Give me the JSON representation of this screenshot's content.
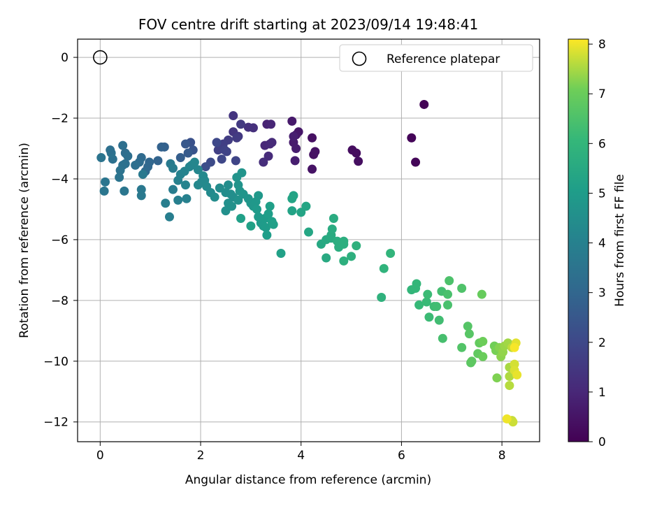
{
  "chart_data": {
    "type": "scatter",
    "title": "FOV centre drift starting at 2023/09/14 19:48:41",
    "xlabel": "Angular distance from reference (arcmin)",
    "ylabel": "Rotation from reference (arcmin)",
    "xlim": [
      -0.45,
      8.75
    ],
    "ylim": [
      -12.65,
      0.6
    ],
    "xticks": [
      0,
      2,
      4,
      6,
      8
    ],
    "yticks": [
      0,
      -2,
      -4,
      -6,
      -8,
      -10,
      -12
    ],
    "grid": true,
    "legend": {
      "position": "top-right",
      "entries": [
        "Reference platepar"
      ]
    },
    "reference_point": {
      "x": 0,
      "y": 0
    },
    "colorbar": {
      "label": "Hours from first FF file",
      "min": 0,
      "max": 8.1,
      "ticks": [
        0,
        1,
        2,
        3,
        4,
        5,
        6,
        7,
        8
      ],
      "colormap": "viridis"
    },
    "points": [
      [
        6.45,
        -1.55,
        0.05
      ],
      [
        6.2,
        -2.65,
        0.1
      ],
      [
        6.28,
        -3.45,
        0.12
      ],
      [
        5.02,
        -3.05,
        0.3
      ],
      [
        5.1,
        -3.15,
        0.32
      ],
      [
        5.14,
        -3.42,
        0.35
      ],
      [
        4.22,
        -2.65,
        0.4
      ],
      [
        4.25,
        -3.2,
        0.42
      ],
      [
        4.28,
        -3.1,
        0.45
      ],
      [
        4.22,
        -3.68,
        0.48
      ],
      [
        3.95,
        -2.45,
        0.55
      ],
      [
        3.9,
        -2.55,
        0.6
      ],
      [
        3.82,
        -2.1,
        0.65
      ],
      [
        3.85,
        -2.8,
        0.7
      ],
      [
        3.9,
        -3.0,
        0.72
      ],
      [
        3.88,
        -3.4,
        0.75
      ],
      [
        3.85,
        -2.6,
        0.78
      ],
      [
        3.32,
        -2.2,
        0.9
      ],
      [
        3.4,
        -2.2,
        0.95
      ],
      [
        3.28,
        -2.9,
        1.0
      ],
      [
        3.38,
        -2.85,
        1.05
      ],
      [
        3.42,
        -2.8,
        1.1
      ],
      [
        3.35,
        -3.25,
        1.15
      ],
      [
        3.25,
        -3.45,
        1.2
      ],
      [
        3.05,
        -2.32,
        1.25
      ],
      [
        2.95,
        -2.3,
        1.3
      ],
      [
        2.65,
        -1.92,
        1.4
      ],
      [
        2.65,
        -2.45,
        1.45
      ],
      [
        2.75,
        -2.6,
        1.5
      ],
      [
        2.8,
        -2.2,
        1.55
      ],
      [
        2.72,
        -2.65,
        1.6
      ],
      [
        2.55,
        -2.72,
        1.65
      ],
      [
        2.45,
        -2.85,
        1.7
      ],
      [
        2.35,
        -3.05,
        1.75
      ],
      [
        2.48,
        -3.05,
        1.8
      ],
      [
        2.52,
        -3.1,
        1.85
      ],
      [
        2.7,
        -3.4,
        1.9
      ],
      [
        2.42,
        -3.35,
        1.95
      ],
      [
        2.32,
        -2.8,
        2.0
      ],
      [
        2.2,
        -3.45,
        2.1
      ],
      [
        2.1,
        -3.6,
        2.2
      ],
      [
        1.8,
        -2.8,
        2.3
      ],
      [
        1.85,
        -3.05,
        2.4
      ],
      [
        1.7,
        -2.85,
        2.5
      ],
      [
        1.75,
        -3.15,
        2.6
      ],
      [
        1.6,
        -3.3,
        2.7
      ],
      [
        1.28,
        -2.95,
        2.8
      ],
      [
        1.22,
        -2.95,
        2.85
      ],
      [
        1.15,
        -3.4,
        2.9
      ],
      [
        0.98,
        -3.45,
        3.0
      ],
      [
        0.95,
        -3.6,
        3.05
      ],
      [
        0.9,
        -3.75,
        3.1
      ],
      [
        0.82,
        -3.3,
        3.15
      ],
      [
        0.78,
        -3.45,
        3.2
      ],
      [
        0.7,
        -3.55,
        3.3
      ],
      [
        0.5,
        -3.5,
        3.35
      ],
      [
        0.45,
        -3.55,
        3.4
      ],
      [
        0.4,
        -3.72,
        3.45
      ],
      [
        0.38,
        -3.95,
        3.5
      ],
      [
        0.25,
        -3.35,
        3.4
      ],
      [
        0.22,
        -3.15,
        3.45
      ],
      [
        0.2,
        -3.05,
        3.35
      ],
      [
        0.45,
        -2.9,
        3.3
      ],
      [
        0.5,
        -3.15,
        3.25
      ],
      [
        0.55,
        -3.25,
        3.3
      ],
      [
        0.02,
        -3.3,
        3.5
      ],
      [
        0.1,
        -4.1,
        3.55
      ],
      [
        0.08,
        -4.4,
        3.6
      ],
      [
        0.48,
        -4.4,
        3.6
      ],
      [
        0.82,
        -4.35,
        3.65
      ],
      [
        0.82,
        -4.55,
        3.7
      ],
      [
        0.85,
        -3.85,
        3.7
      ],
      [
        1.4,
        -3.5,
        3.75
      ],
      [
        1.45,
        -3.65,
        3.8
      ],
      [
        1.45,
        -4.35,
        3.85
      ],
      [
        1.3,
        -4.8,
        3.9
      ],
      [
        1.38,
        -5.25,
        3.9
      ],
      [
        1.55,
        -4.7,
        3.95
      ],
      [
        1.72,
        -4.65,
        4.0
      ],
      [
        1.55,
        -4.05,
        4.0
      ],
      [
        1.6,
        -3.85,
        4.05
      ],
      [
        1.68,
        -3.75,
        4.1
      ],
      [
        1.7,
        -4.2,
        4.1
      ],
      [
        1.78,
        -3.6,
        4.15
      ],
      [
        1.82,
        -3.55,
        4.15
      ],
      [
        1.88,
        -3.45,
        4.2
      ],
      [
        1.95,
        -3.7,
        4.2
      ],
      [
        1.95,
        -4.2,
        4.25
      ],
      [
        2.02,
        -4.1,
        4.25
      ],
      [
        2.05,
        -3.9,
        4.3
      ],
      [
        2.08,
        -4.05,
        4.3
      ],
      [
        2.12,
        -4.25,
        4.35
      ],
      [
        2.2,
        -4.45,
        4.35
      ],
      [
        2.28,
        -4.6,
        4.4
      ],
      [
        2.38,
        -4.3,
        4.4
      ],
      [
        2.5,
        -4.45,
        4.45
      ],
      [
        2.55,
        -4.2,
        4.45
      ],
      [
        2.6,
        -4.5,
        4.5
      ],
      [
        2.65,
        -4.6,
        4.5
      ],
      [
        2.55,
        -4.8,
        4.55
      ],
      [
        2.5,
        -5.05,
        4.55
      ],
      [
        2.62,
        -4.9,
        4.6
      ],
      [
        2.75,
        -4.7,
        4.6
      ],
      [
        2.75,
        -4.2,
        4.65
      ],
      [
        2.72,
        -3.95,
        4.65
      ],
      [
        2.78,
        -4.4,
        4.7
      ],
      [
        2.82,
        -3.8,
        4.7
      ],
      [
        2.85,
        -4.5,
        4.75
      ],
      [
        2.95,
        -4.65,
        4.75
      ],
      [
        3.0,
        -4.8,
        4.8
      ],
      [
        3.05,
        -4.9,
        4.8
      ],
      [
        3.1,
        -4.75,
        4.85
      ],
      [
        3.15,
        -4.55,
        4.85
      ],
      [
        3.12,
        -5.0,
        4.9
      ],
      [
        3.15,
        -5.25,
        4.9
      ],
      [
        3.2,
        -5.45,
        4.95
      ],
      [
        3.25,
        -5.55,
        4.95
      ],
      [
        3.28,
        -5.3,
        5.0
      ],
      [
        3.3,
        -5.6,
        5.0
      ],
      [
        3.32,
        -5.85,
        5.05
      ],
      [
        3.35,
        -5.15,
        5.05
      ],
      [
        3.38,
        -4.9,
        5.1
      ],
      [
        3.42,
        -5.4,
        5.1
      ],
      [
        3.45,
        -5.5,
        5.15
      ],
      [
        2.8,
        -5.3,
        5.15
      ],
      [
        3.0,
        -5.55,
        5.2
      ],
      [
        3.6,
        -6.45,
        5.2
      ],
      [
        3.82,
        -5.05,
        5.25
      ],
      [
        3.85,
        -4.55,
        5.25
      ],
      [
        3.82,
        -4.65,
        5.3
      ],
      [
        4.0,
        -5.1,
        5.3
      ],
      [
        4.1,
        -4.9,
        5.35
      ],
      [
        4.15,
        -5.75,
        5.4
      ],
      [
        4.4,
        -6.15,
        5.45
      ],
      [
        4.5,
        -6.0,
        5.5
      ],
      [
        4.5,
        -6.6,
        5.5
      ],
      [
        4.6,
        -5.85,
        5.55
      ],
      [
        4.6,
        -5.95,
        5.55
      ],
      [
        4.62,
        -5.65,
        5.6
      ],
      [
        4.65,
        -5.3,
        5.6
      ],
      [
        4.72,
        -6.05,
        5.65
      ],
      [
        4.75,
        -6.25,
        5.65
      ],
      [
        4.85,
        -6.05,
        5.7
      ],
      [
        4.85,
        -6.15,
        5.7
      ],
      [
        4.85,
        -6.7,
        5.75
      ],
      [
        5.0,
        -6.55,
        5.75
      ],
      [
        5.1,
        -6.2,
        5.8
      ],
      [
        5.6,
        -7.9,
        5.85
      ],
      [
        5.65,
        -6.95,
        5.9
      ],
      [
        5.78,
        -6.45,
        5.95
      ],
      [
        6.2,
        -7.65,
        6.0
      ],
      [
        6.28,
        -7.6,
        6.05
      ],
      [
        6.3,
        -7.45,
        6.05
      ],
      [
        6.35,
        -8.15,
        6.1
      ],
      [
        6.5,
        -8.05,
        6.15
      ],
      [
        6.52,
        -7.8,
        6.2
      ],
      [
        6.55,
        -8.55,
        6.2
      ],
      [
        6.65,
        -8.2,
        6.25
      ],
      [
        6.7,
        -8.2,
        6.3
      ],
      [
        6.75,
        -8.65,
        6.3
      ],
      [
        6.8,
        -7.7,
        6.35
      ],
      [
        6.82,
        -9.25,
        6.4
      ],
      [
        6.92,
        -7.8,
        6.45
      ],
      [
        6.92,
        -8.15,
        6.45
      ],
      [
        6.95,
        -7.35,
        6.5
      ],
      [
        7.2,
        -7.6,
        6.55
      ],
      [
        7.2,
        -9.55,
        6.6
      ],
      [
        7.32,
        -8.85,
        6.65
      ],
      [
        7.35,
        -9.1,
        6.7
      ],
      [
        7.38,
        -10.05,
        6.75
      ],
      [
        7.4,
        -10.0,
        6.8
      ],
      [
        7.52,
        -9.75,
        6.85
      ],
      [
        7.55,
        -9.4,
        6.9
      ],
      [
        7.6,
        -7.8,
        6.95
      ],
      [
        7.62,
        -9.85,
        7.0
      ],
      [
        7.62,
        -9.35,
        7.05
      ],
      [
        7.85,
        -9.5,
        7.1
      ],
      [
        7.88,
        -9.65,
        7.15
      ],
      [
        7.9,
        -10.55,
        7.2
      ],
      [
        7.95,
        -9.55,
        7.25
      ],
      [
        7.98,
        -9.85,
        7.3
      ],
      [
        8.02,
        -9.7,
        7.35
      ],
      [
        8.05,
        -9.5,
        7.4
      ],
      [
        8.12,
        -9.4,
        7.45
      ],
      [
        8.15,
        -10.2,
        7.5
      ],
      [
        8.15,
        -10.5,
        7.55
      ],
      [
        8.15,
        -10.8,
        7.6
      ],
      [
        8.2,
        -9.55,
        7.65
      ],
      [
        8.2,
        -11.95,
        7.7
      ],
      [
        8.22,
        -12.0,
        7.75
      ],
      [
        8.25,
        -10.1,
        7.8
      ],
      [
        8.25,
        -10.3,
        7.85
      ],
      [
        8.28,
        -9.4,
        7.9
      ],
      [
        8.3,
        -10.45,
        7.95
      ],
      [
        8.1,
        -11.9,
        8.0
      ],
      [
        8.25,
        -9.55,
        8.05
      ]
    ]
  }
}
